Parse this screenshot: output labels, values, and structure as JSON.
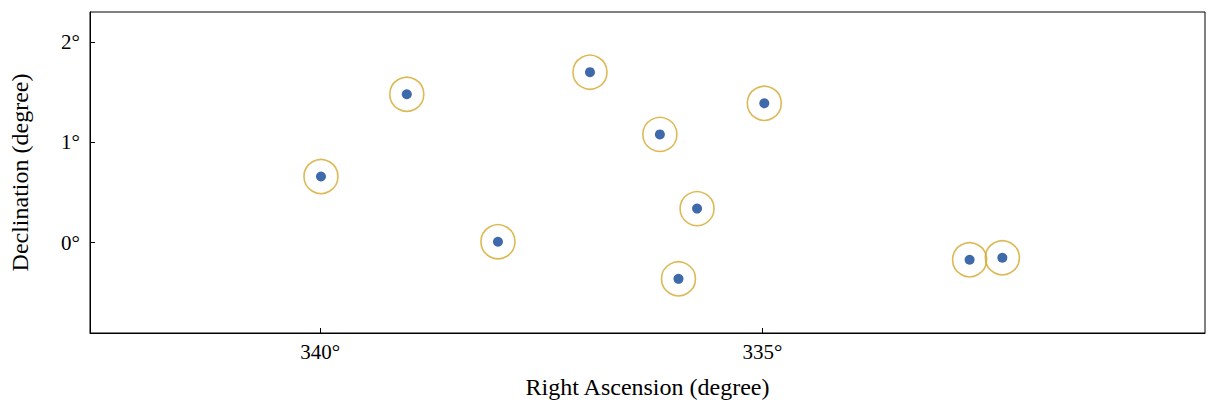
{
  "chart_data": {
    "type": "scatter",
    "x_label": "Right Ascension (degree)",
    "y_label": "Declination (degree)",
    "x": [
      339.02,
      339.99,
      336.95,
      334.98,
      336.16,
      335.74,
      337.99,
      335.95,
      332.66,
      332.29
    ],
    "y": [
      1.48,
      0.66,
      1.7,
      1.39,
      1.08,
      0.34,
      0.01,
      -0.36,
      -0.17,
      -0.15
    ],
    "color": "#d4a72c",
    "marker": "ring",
    "xlim": [
      342.6,
      330
    ],
    "ylim": [
      -0.9,
      2.3
    ],
    "xticks": [
      {
        "value": 340,
        "label": "340°"
      },
      {
        "value": 335,
        "label": "335°"
      }
    ],
    "yticks": [
      {
        "value": 0,
        "label": "0°"
      },
      {
        "value": 1,
        "label": "1°"
      },
      {
        "value": 2,
        "label": "2°"
      }
    ],
    "grid": false
  }
}
